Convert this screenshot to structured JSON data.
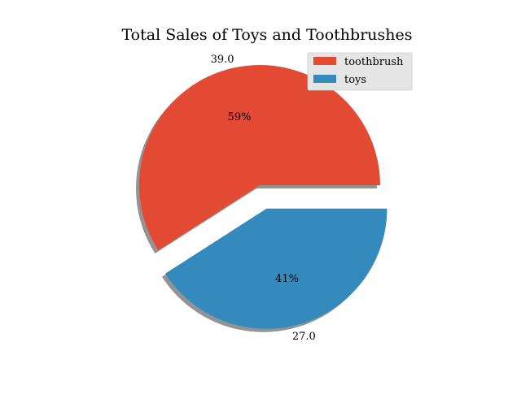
{
  "chart_data": {
    "type": "pie",
    "title": "Total Sales of Toys and Toothbrushes",
    "slices": [
      {
        "label": "toothbrush",
        "value": 39.0,
        "value_text": "39.0",
        "pct_text": "59%",
        "color": "#E24A33",
        "exploded": false
      },
      {
        "label": "toys",
        "value": 27.0,
        "value_text": "27.0",
        "pct_text": "41%",
        "color": "#348ABD",
        "exploded": true
      }
    ],
    "start_angle_deg": 0,
    "direction": "counterclockwise",
    "shadow": true,
    "legend": {
      "placement": "top-right",
      "entries": [
        "toothbrush",
        "toys"
      ]
    }
  }
}
